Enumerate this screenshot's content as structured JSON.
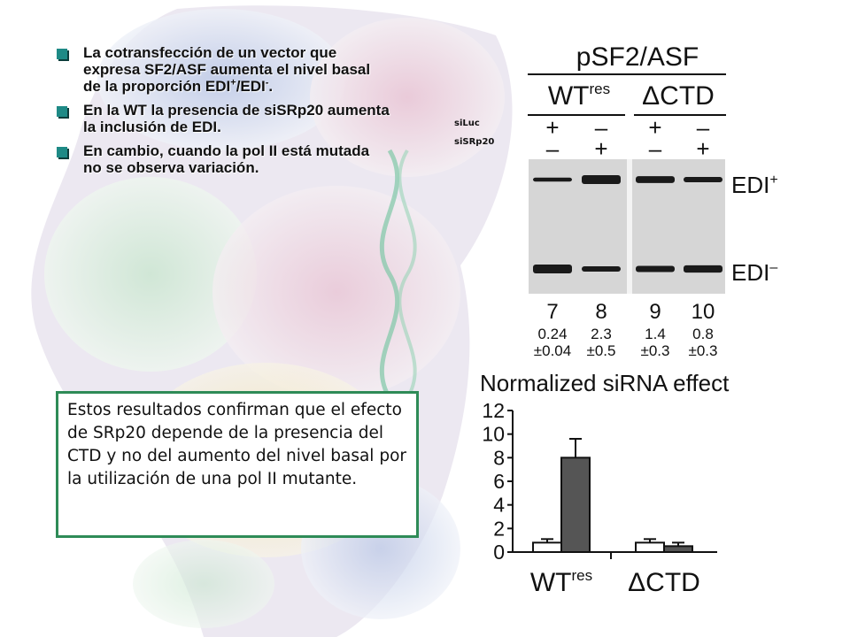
{
  "bullets": [
    {
      "text": "La cotransfección de un vector que expresa SF2/ASF aumenta el nivel basal de la proporción EDI",
      "sup1": "+",
      "mid": "/EDI",
      "sup2": "-",
      "end": "."
    },
    {
      "text": "En la WT la presencia de siSRp20 aumenta la inclusión de EDI."
    },
    {
      "text": "En cambio, cuando la pol II está mutada no se observa variación."
    }
  ],
  "labels": {
    "siluc": "siLuc",
    "sisrp20": "siSRp20"
  },
  "note": "Estos resultados confirman que el efecto de SRp20 depende de la presencia del CTD y no del aumento del nivel basal por la utilización de una pol II mutante.",
  "gel": {
    "title": "pSF2/ASF",
    "groups": [
      {
        "main": "WT",
        "sup": "res"
      },
      {
        "main": "ΔCTD",
        "sup": ""
      }
    ],
    "row1": [
      "+",
      "–",
      "+",
      "–"
    ],
    "row2": [
      "–",
      "+",
      "–",
      "+"
    ],
    "bands": [
      {
        "main": "EDI",
        "sup": "+"
      },
      {
        "main": "EDI",
        "sup": "–"
      }
    ],
    "lanes": [
      "7",
      "8",
      "9",
      "10"
    ],
    "ratios": [
      "0.24",
      "2.3",
      "1.4",
      "0.8"
    ],
    "errors": [
      "±0.04",
      "±0.5",
      "±0.3",
      "±0.3"
    ]
  },
  "chart_data": {
    "type": "bar",
    "title": "Normalized siRNA effect",
    "categories": [
      {
        "main": "WT",
        "sup": "res"
      },
      {
        "main": "ΔCTD",
        "sup": ""
      }
    ],
    "series": [
      {
        "values": [
          0.8,
          0.8
        ],
        "errors": [
          0.3,
          0.3
        ],
        "color": "#ffffff"
      },
      {
        "values": [
          8.0,
          0.5
        ],
        "errors": [
          1.6,
          0.3
        ],
        "color": "#555555"
      }
    ],
    "ylim": [
      0,
      12
    ],
    "yticks": [
      0,
      2,
      4,
      6,
      8,
      10,
      12
    ]
  }
}
